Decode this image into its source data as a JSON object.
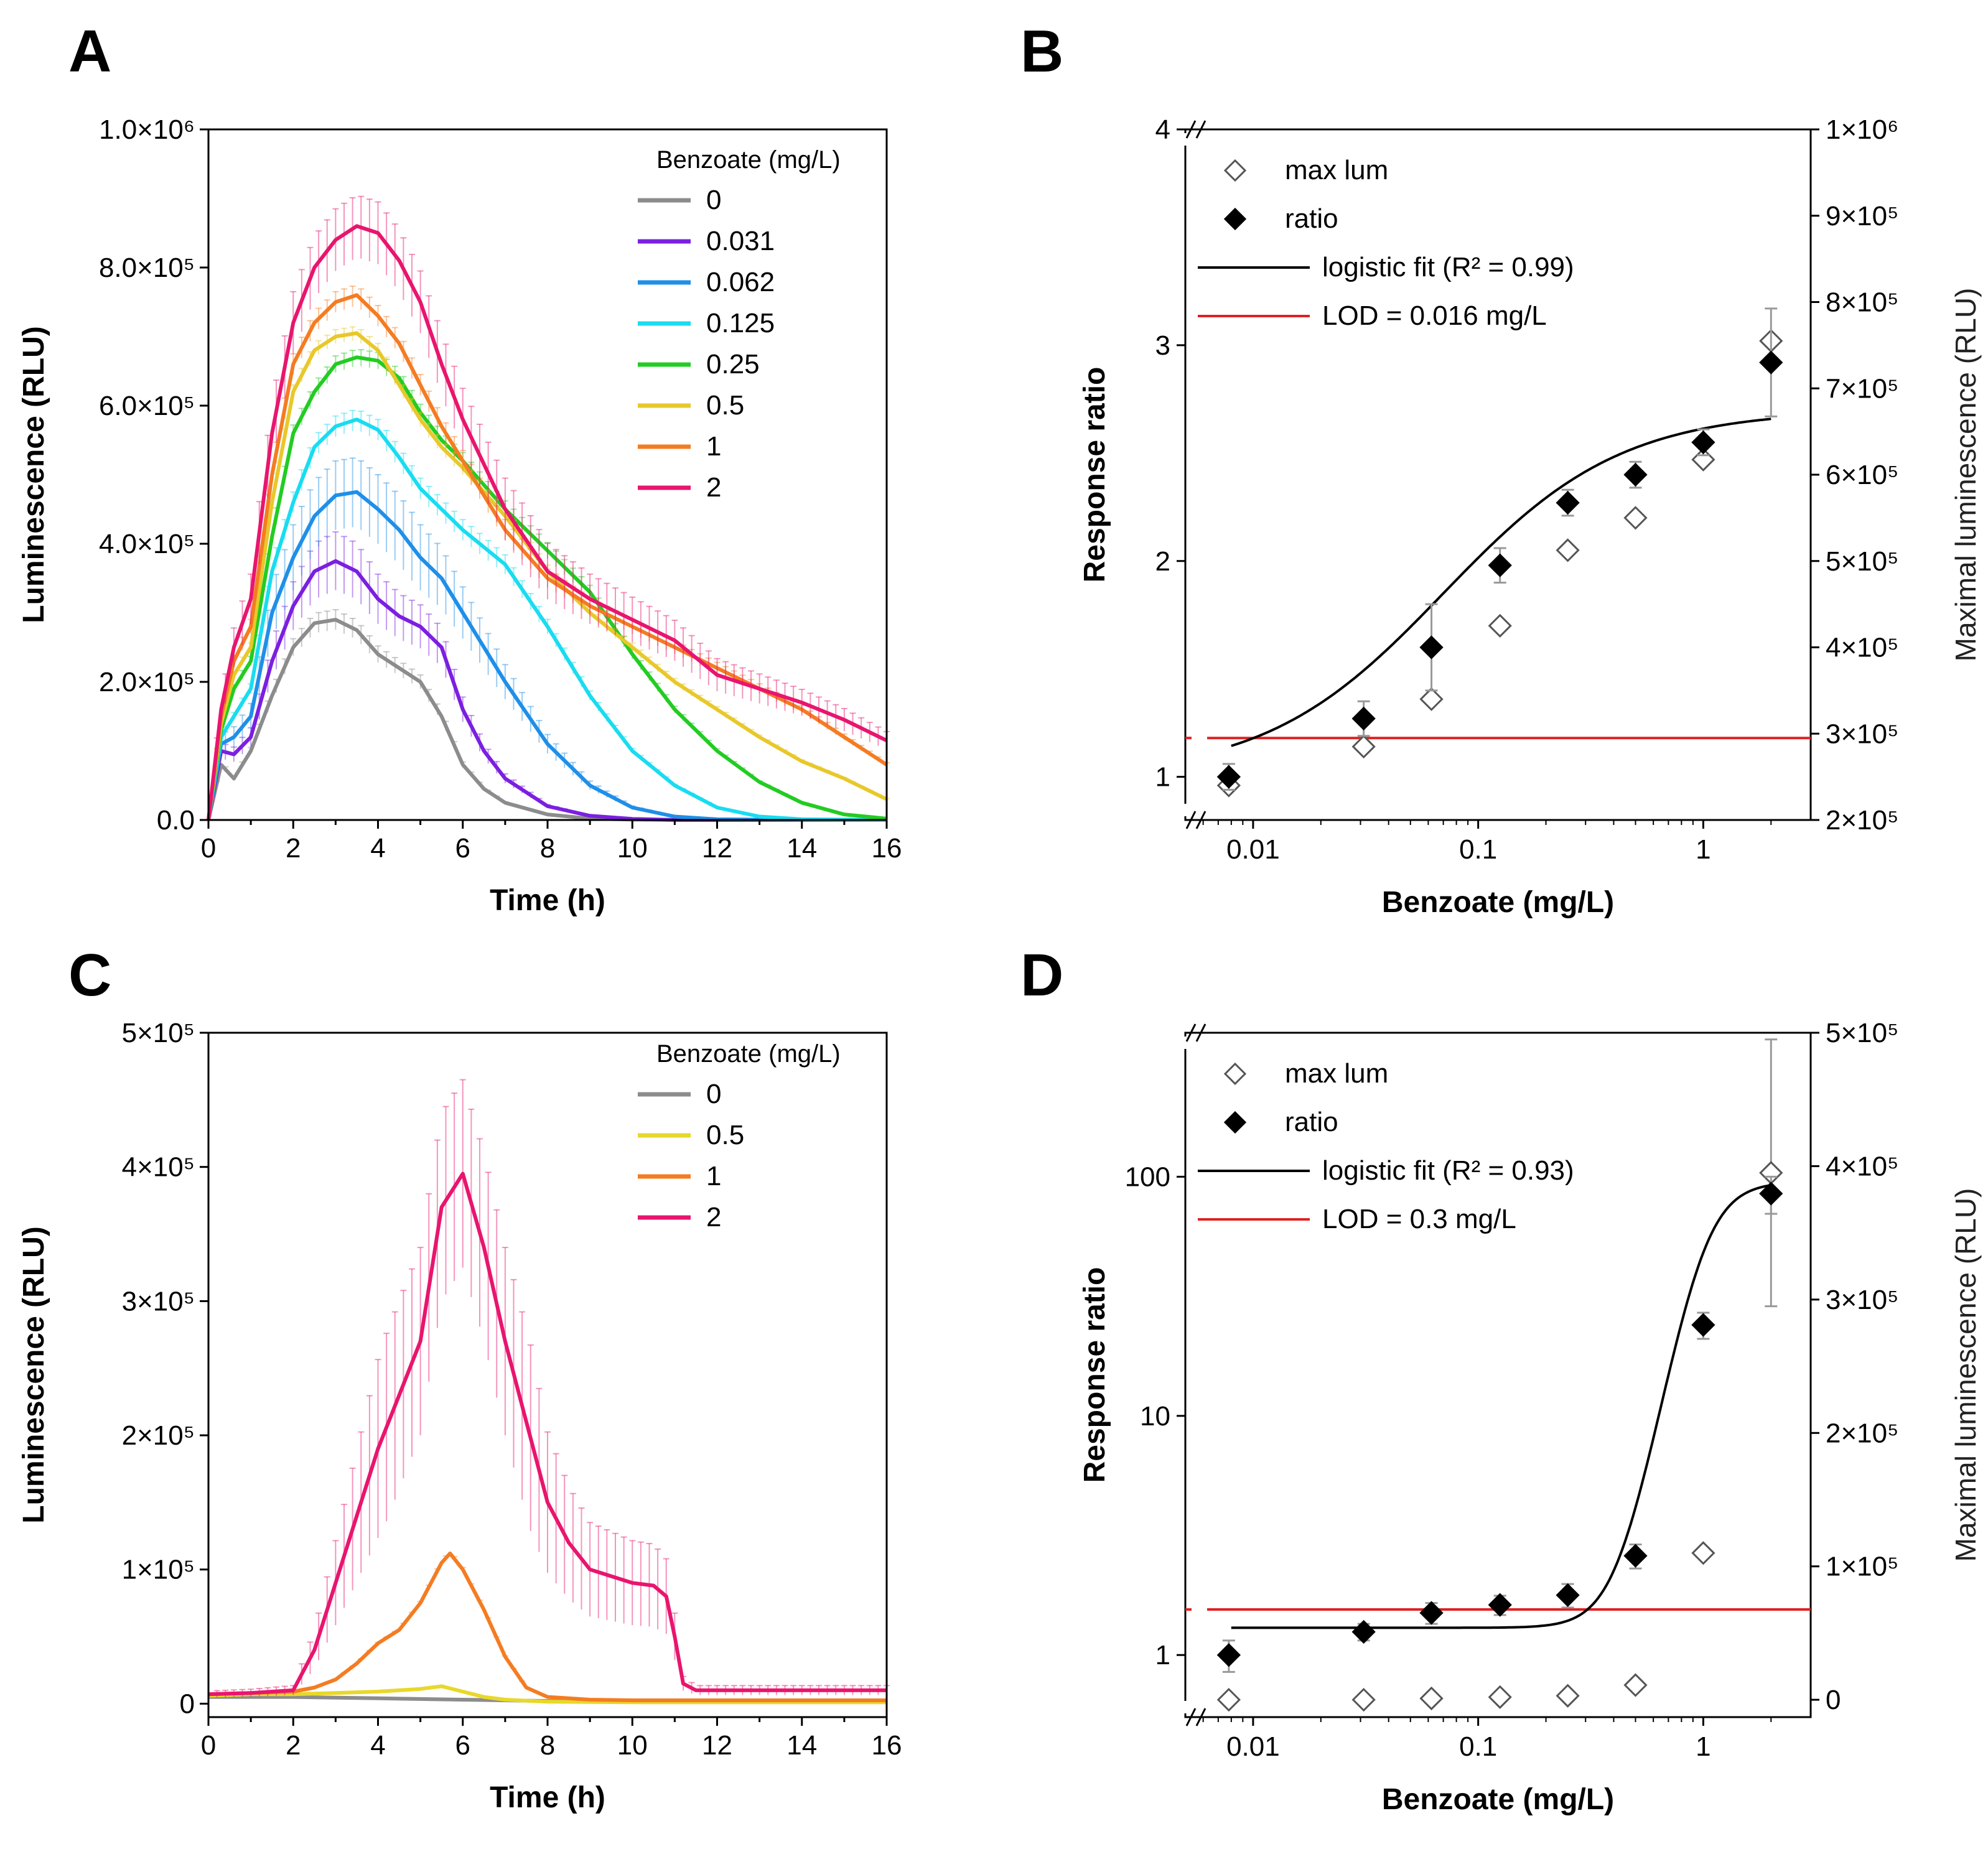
{
  "chart_data": [
    {
      "panel": "A",
      "type": "line",
      "xlabel": "Time (h)",
      "ylabel": "Luminescence (RLU)",
      "xlim": [
        0,
        16
      ],
      "ylim": [
        0,
        1000000
      ],
      "xticks": [
        "0",
        "2",
        "4",
        "6",
        "8",
        "10",
        "12",
        "14",
        "16"
      ],
      "yticks": [
        "0.0",
        "2.0×10⁵",
        "4.0×10⁵",
        "6.0×10⁵",
        "8.0×10⁵",
        "1.0×10⁶"
      ],
      "legend_title": "Benzoate (mg/L)",
      "legend_position": "top-right",
      "series": [
        {
          "name": "0",
          "color": "#8c8c8c",
          "x": [
            0,
            0.3,
            0.6,
            1,
            1.5,
            2,
            2.5,
            3,
            3.5,
            4,
            4.5,
            5,
            5.5,
            6,
            6.5,
            7,
            8,
            9,
            10,
            12,
            14,
            16
          ],
          "y": [
            0,
            80000,
            60000,
            100000,
            180000,
            250000,
            285000,
            290000,
            275000,
            240000,
            220000,
            200000,
            150000,
            80000,
            45000,
            25000,
            8000,
            2000,
            500,
            0,
            0,
            0
          ],
          "err": 20000
        },
        {
          "name": "0.031",
          "color": "#7b1fe0",
          "x": [
            0,
            0.3,
            0.6,
            1,
            1.5,
            2,
            2.5,
            3,
            3.5,
            4,
            4.5,
            5,
            5.5,
            6,
            6.5,
            7,
            8,
            9,
            10,
            11,
            12,
            14,
            16
          ],
          "y": [
            0,
            100000,
            95000,
            120000,
            230000,
            310000,
            360000,
            375000,
            360000,
            320000,
            295000,
            280000,
            250000,
            160000,
            100000,
            60000,
            20000,
            6000,
            1500,
            0,
            0,
            0,
            0
          ],
          "err": 45000
        },
        {
          "name": "0.062",
          "color": "#1f8fe8",
          "x": [
            0,
            0.3,
            0.6,
            1,
            1.5,
            2,
            2.5,
            3,
            3.5,
            4,
            4.5,
            5,
            5.5,
            6,
            7,
            8,
            9,
            10,
            11,
            12,
            14,
            16
          ],
          "y": [
            0,
            110000,
            120000,
            150000,
            300000,
            380000,
            440000,
            470000,
            475000,
            450000,
            420000,
            380000,
            350000,
            300000,
            200000,
            110000,
            50000,
            18000,
            5000,
            1000,
            0,
            0
          ],
          "err": 50000
        },
        {
          "name": "0.125",
          "color": "#19dcf0",
          "x": [
            0,
            0.3,
            0.6,
            1,
            1.5,
            2,
            2.5,
            3,
            3.5,
            4,
            4.5,
            5,
            5.5,
            6,
            7,
            8,
            9,
            10,
            11,
            12,
            13,
            14,
            16
          ],
          "y": [
            0,
            120000,
            150000,
            190000,
            360000,
            460000,
            540000,
            570000,
            580000,
            565000,
            525000,
            480000,
            450000,
            420000,
            370000,
            280000,
            180000,
            100000,
            50000,
            18000,
            5000,
            1000,
            0
          ],
          "err": 15000
        },
        {
          "name": "0.25",
          "color": "#22cc22",
          "x": [
            0,
            0.3,
            0.6,
            1,
            1.5,
            2,
            2.5,
            3,
            3.5,
            4,
            4.5,
            5,
            5.5,
            6,
            7,
            7.5,
            8,
            9,
            10,
            11,
            12,
            13,
            14,
            15,
            16
          ],
          "y": [
            0,
            130000,
            190000,
            230000,
            410000,
            560000,
            620000,
            660000,
            670000,
            665000,
            640000,
            590000,
            550000,
            520000,
            450000,
            420000,
            390000,
            330000,
            240000,
            160000,
            100000,
            55000,
            25000,
            8000,
            2000
          ],
          "err": 12000
        },
        {
          "name": "0.5",
          "color": "#e8c82a",
          "x": [
            0,
            0.3,
            0.6,
            1,
            1.5,
            2,
            2.5,
            3,
            3.5,
            4,
            4.5,
            5,
            5.5,
            6,
            7,
            8,
            9,
            10,
            11,
            12,
            13,
            14,
            15,
            16
          ],
          "y": [
            0,
            140000,
            210000,
            250000,
            460000,
            620000,
            680000,
            700000,
            705000,
            680000,
            630000,
            580000,
            540000,
            510000,
            440000,
            360000,
            300000,
            250000,
            200000,
            160000,
            120000,
            85000,
            60000,
            30000
          ],
          "err": 10000
        },
        {
          "name": "1",
          "color": "#f47c22",
          "x": [
            0,
            0.3,
            0.6,
            1,
            1.5,
            2,
            2.5,
            3,
            3.5,
            4,
            4.5,
            5,
            5.5,
            6,
            7,
            8,
            9,
            10,
            11,
            12,
            13,
            14,
            15,
            16
          ],
          "y": [
            0,
            150000,
            230000,
            280000,
            500000,
            660000,
            720000,
            750000,
            760000,
            730000,
            690000,
            630000,
            570000,
            520000,
            420000,
            350000,
            310000,
            280000,
            250000,
            220000,
            190000,
            160000,
            120000,
            80000
          ],
          "err": 15000
        },
        {
          "name": "2",
          "color": "#e8156e",
          "x": [
            0,
            0.3,
            0.6,
            1,
            1.5,
            2,
            2.5,
            3,
            3.5,
            4,
            4.5,
            5,
            5.5,
            6,
            7,
            8,
            9,
            10,
            11,
            12,
            13,
            14,
            15,
            16
          ],
          "y": [
            0,
            160000,
            250000,
            320000,
            560000,
            720000,
            800000,
            840000,
            860000,
            850000,
            810000,
            750000,
            660000,
            580000,
            450000,
            360000,
            320000,
            290000,
            260000,
            210000,
            190000,
            170000,
            145000,
            115000
          ],
          "err": 45000
        }
      ]
    },
    {
      "panel": "B",
      "type": "scatter",
      "xscale": "log",
      "xlabel": "Benzoate (mg/L)",
      "ylabel": "Response ratio",
      "y2label": "Maximal luminescence (RLU)",
      "xlim": [
        0.005,
        3
      ],
      "ylim": [
        0.8,
        4
      ],
      "xticks": [
        "0.01",
        "0.1",
        "1"
      ],
      "yticks": [
        "1",
        "2",
        "3",
        "4"
      ],
      "y2ticks": [
        "2×10⁵",
        "3×10⁵",
        "4×10⁵",
        "5×10⁵",
        "6×10⁵",
        "7×10⁵",
        "8×10⁵",
        "9×10⁵",
        "1×10⁶"
      ],
      "legend": [
        {
          "label": "max lum",
          "marker": "open-diamond"
        },
        {
          "label": "ratio",
          "marker": "filled-diamond"
        },
        {
          "label": "logistic fit (R² = 0.99)",
          "marker": "black-line"
        },
        {
          "label": "LOD = 0.016 mg/L",
          "marker": "red-line"
        }
      ],
      "ratio": {
        "x": [
          0.0078,
          0.031,
          0.062,
          0.125,
          0.25,
          0.5,
          1,
          2
        ],
        "y": [
          1.0,
          1.27,
          1.6,
          1.98,
          2.27,
          2.4,
          2.55,
          2.92
        ],
        "err": [
          0.06,
          0.08,
          0.2,
          0.08,
          0.06,
          0.06,
          0.06,
          0.25
        ]
      },
      "max_lum": {
        "x": [
          0.0078,
          0.031,
          0.062,
          0.125,
          0.25,
          0.5,
          1,
          2
        ],
        "y": [
          0.96,
          1.14,
          1.36,
          1.7,
          2.05,
          2.2,
          2.47,
          3.02
        ]
      },
      "fit": {
        "x0": 0.008,
        "x1": 2,
        "low": 1.0,
        "high": 2.7,
        "ec50": 0.07,
        "hill": 1.1
      },
      "lod_y": 1.18
    },
    {
      "panel": "C",
      "type": "line",
      "xlabel": "Time (h)",
      "ylabel": "Luminescence (RLU)",
      "xlim": [
        0,
        16
      ],
      "ylim": [
        -10000,
        500000
      ],
      "xticks": [
        "0",
        "2",
        "4",
        "6",
        "8",
        "10",
        "12",
        "14",
        "16"
      ],
      "yticks": [
        "0",
        "1×10⁵",
        "2×10⁵",
        "3×10⁵",
        "4×10⁵",
        "5×10⁵"
      ],
      "legend_title": "Benzoate (mg/L)",
      "legend_position": "top-right",
      "series": [
        {
          "name": "0",
          "color": "#8c8c8c",
          "x": [
            0,
            2,
            4,
            6,
            8,
            10,
            12,
            14,
            16
          ],
          "y": [
            5000,
            5000,
            4000,
            3000,
            2000,
            2000,
            1500,
            1500,
            1500
          ],
          "err": 0
        },
        {
          "name": "0.5",
          "color": "#e8d82a",
          "x": [
            0,
            1,
            2,
            3,
            4,
            4.5,
            5,
            5.5,
            6,
            6.5,
            7,
            8,
            10,
            12,
            16
          ],
          "y": [
            6000,
            7000,
            7000,
            8000,
            9000,
            10000,
            11000,
            13000,
            9000,
            5000,
            3000,
            1500,
            1000,
            1000,
            1000
          ],
          "err": 0
        },
        {
          "name": "1",
          "color": "#f47c22",
          "x": [
            0,
            1,
            2,
            2.5,
            3,
            3.5,
            4,
            4.5,
            5,
            5.5,
            5.7,
            6,
            6.5,
            7,
            7.5,
            8,
            9,
            10,
            12,
            16
          ],
          "y": [
            7000,
            8000,
            9000,
            12000,
            18000,
            30000,
            45000,
            55000,
            75000,
            105000,
            112000,
            100000,
            70000,
            35000,
            12000,
            5000,
            3000,
            2500,
            2500,
            2500
          ],
          "err": 3000
        },
        {
          "name": "2",
          "color": "#e8156e",
          "x": [
            0,
            1,
            2,
            2.5,
            3,
            3.5,
            4,
            4.5,
            5,
            5.5,
            6,
            6.5,
            7,
            7.5,
            8,
            8.5,
            9,
            9.5,
            10,
            10.5,
            10.8,
            11,
            11.2,
            11.5,
            12,
            14,
            16
          ],
          "y": [
            7000,
            8000,
            10000,
            40000,
            90000,
            140000,
            190000,
            230000,
            270000,
            370000,
            395000,
            340000,
            270000,
            210000,
            150000,
            120000,
            100000,
            95000,
            90000,
            88000,
            80000,
            50000,
            15000,
            10000,
            10000,
            10000,
            10000
          ],
          "err": 70000
        }
      ]
    },
    {
      "panel": "D",
      "type": "scatter",
      "xscale": "log",
      "yscale": "log",
      "xlabel": "Benzoate (mg/L)",
      "ylabel": "Response ratio",
      "y2label": "Maximal luminescence (RLU)",
      "xlim": [
        0.005,
        3
      ],
      "ylim": [
        0.55,
        400
      ],
      "xticks": [
        "0.01",
        "0.1",
        "1"
      ],
      "yticks": [
        "1",
        "10",
        "100"
      ],
      "y2ticks": [
        "0",
        "1×10⁵",
        "2×10⁵",
        "3×10⁵",
        "4×10⁵",
        "5×10⁵"
      ],
      "legend": [
        {
          "label": "max lum",
          "marker": "open-diamond"
        },
        {
          "label": "ratio",
          "marker": "filled-diamond"
        },
        {
          "label": "logistic fit (R² = 0.93)",
          "marker": "black-line"
        },
        {
          "label": "LOD = 0.3 mg/L",
          "marker": "red-line"
        }
      ],
      "ratio": {
        "x": [
          0.0078,
          0.031,
          0.062,
          0.125,
          0.25,
          0.5,
          1,
          2
        ],
        "y": [
          1.0,
          1.25,
          1.5,
          1.62,
          1.78,
          2.6,
          24,
          85
        ],
        "err": [
          0.15,
          0.1,
          0.15,
          0.15,
          0.2,
          0.3,
          3,
          15
        ]
      },
      "max_lum": {
        "x": [
          0.0078,
          0.031,
          0.062,
          0.125,
          0.25,
          0.5,
          1,
          2
        ],
        "y2": [
          0,
          0,
          1000,
          2000,
          3000,
          11000,
          110000,
          395000
        ],
        "err2": [
          0,
          0,
          0,
          0,
          0,
          0,
          0,
          100000
        ]
      },
      "fit": {
        "x0": 0.008,
        "x1": 2,
        "low": 1.3,
        "high": 95,
        "ec50": 1.0,
        "hill": 5.0
      },
      "lod_y": 1.55
    }
  ]
}
